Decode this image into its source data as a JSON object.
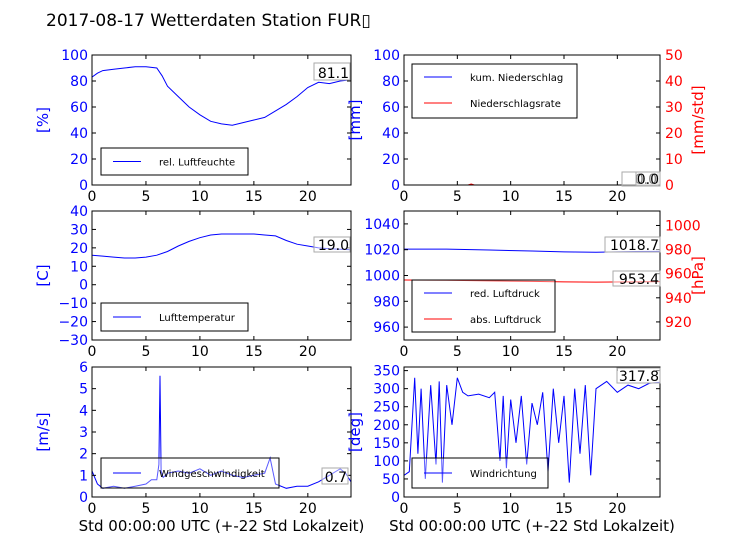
{
  "title": "2017-08-17 Wetterdaten Station FUR▯",
  "colors": {
    "blue": "#0000ff",
    "red": "#ff0000",
    "lightblue": "#8080ff",
    "black": "#000000"
  },
  "chart_data": [
    {
      "type": "line",
      "ylabel": "[%]",
      "xlim": [
        0,
        24
      ],
      "ylim": [
        0,
        100
      ],
      "xticks": [
        "0",
        "5",
        "10",
        "15",
        "20"
      ],
      "yticks": [
        "0",
        "20",
        "40",
        "60",
        "80",
        "100"
      ],
      "series": [
        {
          "name": "rel. Luftfeuchte",
          "color": "#0000ff",
          "x": [
            0,
            0.5,
            1,
            2,
            3,
            4,
            5,
            6,
            6.5,
            7,
            8,
            9,
            10,
            11,
            12,
            13,
            14,
            15,
            16,
            17,
            18,
            19,
            20,
            21,
            22,
            23,
            24
          ],
          "y": [
            83,
            86,
            88,
            89,
            90,
            91,
            91,
            90,
            84,
            76,
            68,
            60,
            54,
            49,
            47,
            46,
            48,
            50,
            52,
            57,
            62,
            68,
            75,
            79,
            78,
            80,
            81
          ]
        }
      ],
      "annotation": "81.1"
    },
    {
      "type": "line",
      "ylabel": "[mm]",
      "ylabel2": "[mm/std]",
      "xlim": [
        0,
        24
      ],
      "ylim": [
        0,
        100
      ],
      "ylim2": [
        0,
        50
      ],
      "xticks": [
        "0",
        "5",
        "10",
        "15",
        "20"
      ],
      "yticks": [
        "0",
        "20",
        "40",
        "60",
        "80",
        "100"
      ],
      "yticks2": [
        "0",
        "10",
        "20",
        "30",
        "40",
        "50"
      ],
      "series": [
        {
          "name": "kum. Niederschlag",
          "color": "#0000ff",
          "x": [
            0,
            24
          ],
          "y": [
            0,
            0
          ]
        },
        {
          "name": "Niederschlagsrate",
          "color": "#ff0000",
          "axis": "right",
          "x": [
            0,
            6,
            6.3,
            6.6,
            24
          ],
          "y": [
            0,
            0,
            0.4,
            0,
            0
          ]
        }
      ],
      "annotation": "0.0",
      "annotation2": "0.0"
    },
    {
      "type": "line",
      "ylabel": "[C]",
      "xlim": [
        0,
        24
      ],
      "ylim": [
        -30,
        40
      ],
      "xticks": [
        "0",
        "5",
        "10",
        "15",
        "20"
      ],
      "yticks": [
        "−30",
        "−20",
        "−10",
        "0",
        "10",
        "20",
        "30",
        "40"
      ],
      "series": [
        {
          "name": "Lufttemperatur",
          "color": "#0000ff",
          "x": [
            0,
            1,
            2,
            3,
            4,
            5,
            6,
            7,
            8,
            9,
            10,
            11,
            12,
            13,
            14,
            15,
            16,
            17,
            18,
            19,
            20,
            21,
            22,
            23,
            24
          ],
          "y": [
            16,
            15.5,
            15,
            14.5,
            14.5,
            15,
            16,
            18,
            21,
            23.5,
            25.5,
            27,
            27.5,
            27.5,
            27.5,
            27.5,
            27,
            26.5,
            24,
            22,
            21,
            20,
            19.5,
            19.2,
            19
          ]
        }
      ],
      "annotation": "19.0"
    },
    {
      "type": "line",
      "ylabel2": "[hPa]",
      "xlim": [
        0,
        24
      ],
      "ylim": [
        950,
        1050
      ],
      "ylim2": [
        905,
        1012
      ],
      "xticks": [
        "0",
        "5",
        "10",
        "15",
        "20"
      ],
      "yticks": [
        "960",
        "980",
        "1000",
        "1020",
        "1040"
      ],
      "yticks2": [
        "920",
        "940",
        "960",
        "980",
        "1000"
      ],
      "series": [
        {
          "name": "red. Luftdruck",
          "color": "#0000ff",
          "x": [
            0,
            4,
            8,
            12,
            15,
            18,
            21,
            24
          ],
          "y": [
            1020.5,
            1020.5,
            1019.8,
            1019,
            1018.3,
            1018,
            1018.5,
            1018.7
          ]
        },
        {
          "name": "abs. Luftdruck",
          "color": "#ff0000",
          "axis": "right",
          "x": [
            0,
            4,
            8,
            12,
            15,
            18,
            21,
            24
          ],
          "y": [
            954.8,
            954.6,
            954,
            953.6,
            953.2,
            953,
            953.2,
            953.4
          ]
        }
      ],
      "annotation": "1018.7",
      "annotation2": "953.4"
    },
    {
      "type": "line",
      "ylabel": "[m/s]",
      "xlim": [
        0,
        24
      ],
      "ylim": [
        0,
        6
      ],
      "xticks": [
        "0",
        "5",
        "10",
        "15",
        "20"
      ],
      "yticks": [
        "0",
        "1",
        "2",
        "3",
        "4",
        "5",
        "6"
      ],
      "xlabel": "Std 00:00:00 UTC (+-22 Std Lokalzeit)",
      "series": [
        {
          "name": "Windgeschwindigkeit",
          "color": "#0000ff",
          "x": [
            0,
            0.5,
            1,
            2,
            3,
            4,
            5,
            5.5,
            6,
            6.2,
            6.3,
            6.4,
            6.6,
            7,
            8,
            9,
            10,
            11,
            12,
            13,
            14,
            15,
            16,
            16.5,
            17,
            18,
            19,
            20,
            21,
            22,
            23,
            23.5,
            24
          ],
          "y": [
            1.2,
            0.6,
            0.4,
            0.5,
            0.4,
            0.5,
            0.6,
            0.8,
            0.8,
            1.5,
            5.6,
            1.2,
            0.9,
            1.1,
            1.2,
            1.1,
            1.3,
            1.0,
            1.2,
            1.0,
            0.9,
            1.0,
            1.1,
            1.8,
            0.6,
            0.4,
            0.5,
            0.5,
            0.7,
            1.0,
            1.3,
            1.1,
            0.7
          ]
        }
      ],
      "annotation": "0.7"
    },
    {
      "type": "line",
      "ylabel": "[deg]",
      "xlim": [
        0,
        24
      ],
      "ylim": [
        0,
        360
      ],
      "xticks": [
        "0",
        "5",
        "10",
        "15",
        "20"
      ],
      "yticks": [
        "0",
        "50",
        "100",
        "150",
        "200",
        "250",
        "300",
        "350"
      ],
      "xlabel": "Std 00:00:00 UTC (+-22 Std Lokalzeit)",
      "series": [
        {
          "name": "Windrichtung",
          "color": "#0000ff",
          "x": [
            0,
            0.5,
            1,
            1.3,
            1.6,
            2,
            2.5,
            3,
            3.3,
            3.6,
            4,
            4.5,
            5,
            5.5,
            6,
            7,
            8,
            8.5,
            9,
            9.3,
            9.6,
            10,
            10.5,
            11,
            11.5,
            12,
            12.5,
            13,
            13.5,
            14,
            14.5,
            15,
            15.5,
            16,
            16.5,
            17,
            17.5,
            18,
            19,
            20,
            21,
            22,
            23,
            24
          ],
          "y": [
            60,
            70,
            330,
            120,
            300,
            50,
            310,
            90,
            320,
            40,
            310,
            200,
            330,
            290,
            280,
            285,
            275,
            290,
            100,
            280,
            80,
            270,
            150,
            280,
            90,
            260,
            200,
            290,
            70,
            300,
            150,
            280,
            40,
            300,
            120,
            310,
            60,
            300,
            320,
            290,
            310,
            300,
            315,
            318
          ]
        }
      ],
      "annotation": "317.8"
    }
  ]
}
